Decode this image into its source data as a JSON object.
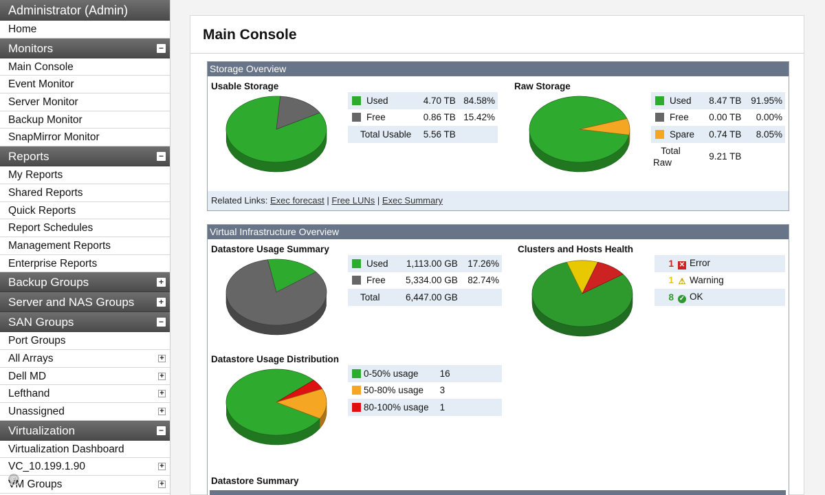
{
  "sidebar": {
    "title": "Administrator (Admin)",
    "home": "Home",
    "monitors": {
      "label": "Monitors",
      "toggle": "−",
      "items": [
        "Main Console",
        "Event Monitor",
        "Server Monitor",
        "Backup Monitor",
        "SnapMirror Monitor"
      ]
    },
    "reports": {
      "label": "Reports",
      "toggle": "−",
      "items": [
        "My Reports",
        "Shared Reports",
        "Quick Reports",
        "Report Schedules",
        "Management Reports",
        "Enterprise Reports"
      ]
    },
    "backup_groups": {
      "label": "Backup Groups",
      "toggle": "+"
    },
    "server_nas_groups": {
      "label": "Server and NAS Groups",
      "toggle": "+"
    },
    "san_groups": {
      "label": "SAN Groups",
      "toggle": "−",
      "items": [
        "Port Groups",
        "All Arrays",
        "Dell MD",
        "Lefthand",
        "Unassigned"
      ]
    },
    "virtualization": {
      "label": "Virtualization",
      "toggle": "−",
      "items": [
        "Virtualization Dashboard",
        "VC_10.199.1.90",
        "VM Groups"
      ]
    },
    "copyright": "©"
  },
  "main": {
    "title": "Main Console",
    "storage_overview": {
      "header": "Storage Overview",
      "usable": {
        "title": "Usable Storage",
        "rows": [
          {
            "label": "Used",
            "value": "4.70 TB",
            "pct": "84.58%",
            "color": "#2eaa2e"
          },
          {
            "label": "Free",
            "value": "0.86 TB",
            "pct": "15.42%",
            "color": "#666666"
          }
        ],
        "total_label": "Total Usable",
        "total_value": "5.56 TB"
      },
      "raw": {
        "title": "Raw Storage",
        "rows": [
          {
            "label": "Used",
            "value": "8.47 TB",
            "pct": "91.95%",
            "color": "#2eaa2e"
          },
          {
            "label": "Free",
            "value": "0.00 TB",
            "pct": "0.00%",
            "color": "#666666"
          },
          {
            "label": "Spare",
            "value": "0.74 TB",
            "pct": "8.05%",
            "color": "#f5a623"
          }
        ],
        "total_label_1": "Total",
        "total_label_2": "Raw",
        "total_value": "9.21 TB"
      },
      "related_label": "Related Links:",
      "links": [
        "Exec forecast",
        "Free LUNs",
        " Exec Summary"
      ],
      "sep": "|"
    },
    "virtual_overview": {
      "header": "Virtual Infrastructure Overview",
      "datastore_usage": {
        "title": "Datastore Usage Summary",
        "rows": [
          {
            "label": "Used",
            "value": "1,113.00 GB",
            "pct": "17.26%",
            "color": "#2eaa2e"
          },
          {
            "label": "Free",
            "value": "5,334.00 GB",
            "pct": "82.74%",
            "color": "#666666"
          }
        ],
        "total_label": "Total",
        "total_value": "6,447.00 GB"
      },
      "clusters": {
        "title": "Clusters and Hosts Health",
        "rows": [
          {
            "count": "1",
            "label": "Error",
            "icon": "error-icon",
            "color": "#cc2222"
          },
          {
            "count": "1",
            "label": "Warning",
            "icon": "warning-icon",
            "color": "#e8c800"
          },
          {
            "count": "8",
            "label": "OK",
            "icon": "ok-icon",
            "color": "#2e9a2e"
          }
        ]
      },
      "distribution": {
        "title": "Datastore Usage Distribution",
        "rows": [
          {
            "label": "0-50% usage",
            "count": "16",
            "color": "#2eaa2e"
          },
          {
            "label": "50-80% usage",
            "count": "3",
            "color": "#f5a623"
          },
          {
            "label": "80-100% usage",
            "count": "1",
            "color": "#dd1111"
          }
        ]
      },
      "summary_title": "Datastore Summary"
    }
  }
}
